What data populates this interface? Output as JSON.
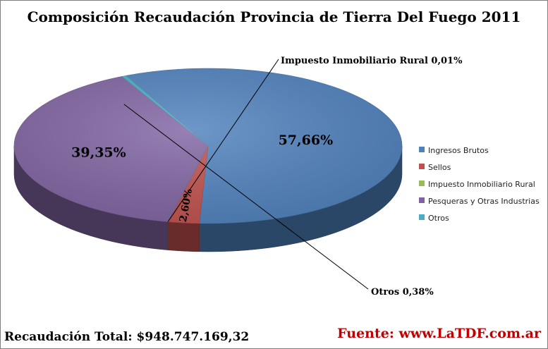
{
  "chart_data": {
    "type": "pie",
    "title": "Composición Recaudación Provincia de Tierra Del Fuego 2011",
    "categories": [
      "Ingresos Brutos",
      "Sellos",
      "Impuesto Inmobiliario Rural",
      "Pesqueras y Otras Industrias",
      "Otros"
    ],
    "values": [
      57.66,
      2.6,
      0.01,
      39.35,
      0.38
    ],
    "unit": "%",
    "labels": [
      "57,66%",
      "2,60%",
      "Impuesto Inmobiliario Rural 0,01%",
      "39,35%",
      "Otros 0,38%"
    ],
    "colors": [
      "#4f81bd",
      "#c0504d",
      "#9bbb59",
      "#8064a2",
      "#4bacc6"
    ],
    "legend_position": "right",
    "three_d": true
  },
  "footer": {
    "total": "Recaudación Total: $948.747.169,32",
    "source": "Fuente: www.LaTDF.com.ar"
  }
}
